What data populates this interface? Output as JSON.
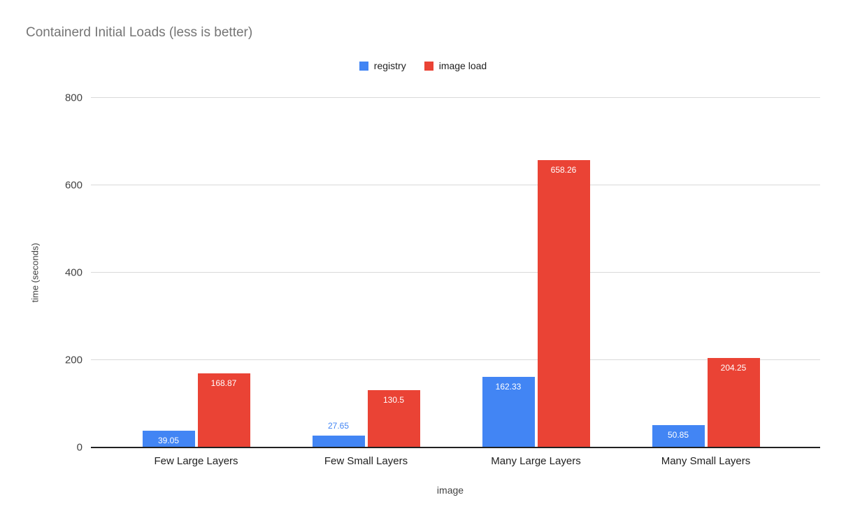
{
  "legend": {
    "items": [
      {
        "label": "registry",
        "color": "#4285F4"
      },
      {
        "label": "image load",
        "color": "#EA4335"
      }
    ]
  },
  "chart_data": {
    "type": "bar",
    "title": "Containerd Initial Loads (less is better)",
    "categories": [
      "Few Large Layers",
      "Few Small Layers",
      "Many Large Layers",
      "Many Small Layers"
    ],
    "series": [
      {
        "name": "registry",
        "color": "#4285F4",
        "values": [
          39.05,
          27.65,
          162.33,
          50.85
        ]
      },
      {
        "name": "image load",
        "color": "#EA4335",
        "values": [
          168.87,
          130.5,
          658.26,
          204.25
        ]
      }
    ],
    "xlabel": "image",
    "ylabel": "time (seconds)",
    "ylim": [
      0,
      800
    ],
    "yticks": [
      0,
      200,
      400,
      600,
      800
    ],
    "grid": true,
    "legend_position": "top",
    "bar_labels": true,
    "colors": {
      "grid": "#d9d9d9",
      "axis_line": "#212121",
      "title_text": "#757575",
      "bar_label_inside": "#ffffff"
    }
  }
}
